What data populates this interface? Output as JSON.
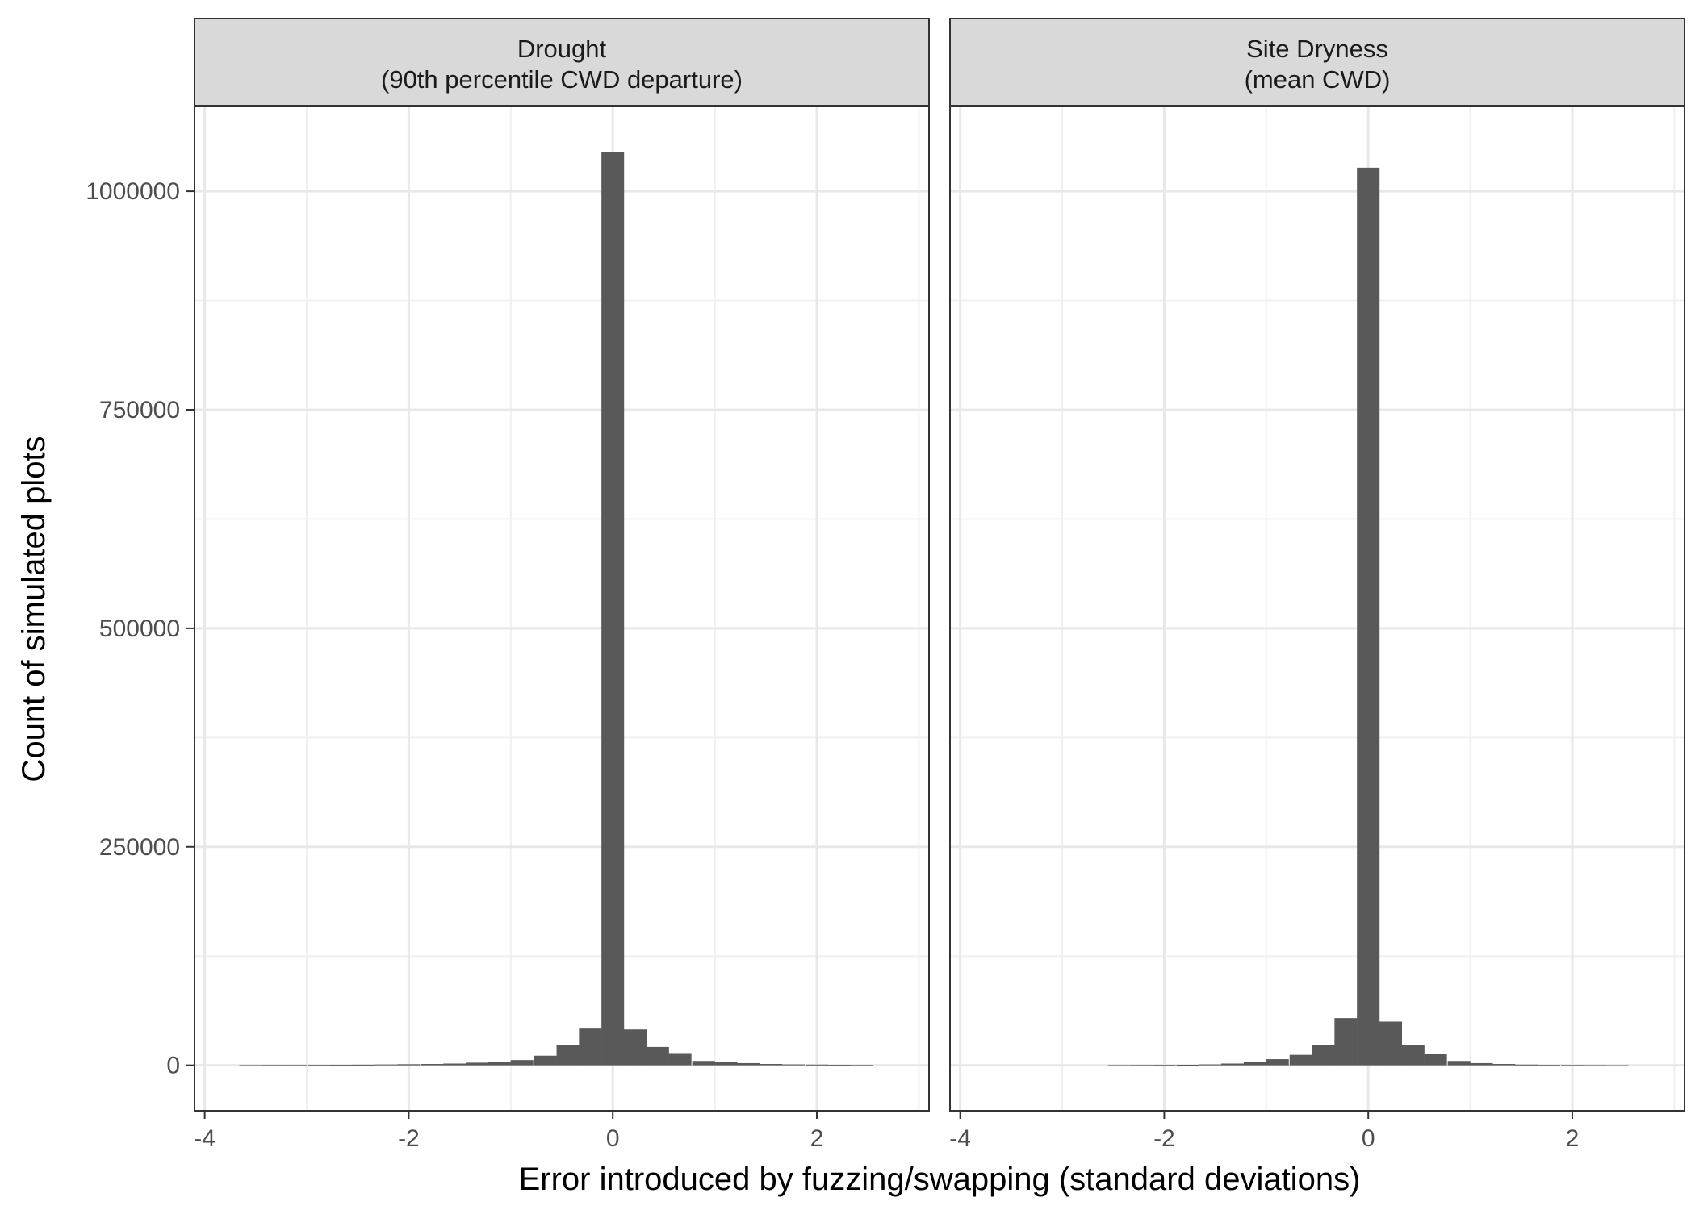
{
  "chart_data": {
    "type": "bar",
    "xlabel": "Error introduced by fuzzing/swapping (standard deviations)",
    "ylabel": "Count of simulated plots",
    "xlim": [
      -4.1,
      3.1
    ],
    "ylim": [
      -52000,
      1097000
    ],
    "x_ticks": [
      -4,
      -2,
      0,
      2
    ],
    "x_tick_labels": [
      "-4",
      "-2",
      "0",
      "2"
    ],
    "y_ticks": [
      0,
      250000,
      500000,
      750000,
      1000000
    ],
    "y_tick_labels": [
      "0",
      "250000",
      "500000",
      "750000",
      "1000000"
    ],
    "grid": true,
    "bin_width": 0.222,
    "bar_color": "#595959",
    "panels": [
      {
        "title_line1": "Drought",
        "title_line2": "(90th percentile CWD departure)",
        "bins": [
          {
            "x": -3.55,
            "y": 200
          },
          {
            "x": -3.33,
            "y": 300
          },
          {
            "x": -3.11,
            "y": 300
          },
          {
            "x": -2.88,
            "y": 400
          },
          {
            "x": -2.66,
            "y": 500
          },
          {
            "x": -2.44,
            "y": 700
          },
          {
            "x": -2.22,
            "y": 900
          },
          {
            "x": -2.0,
            "y": 1200
          },
          {
            "x": -1.77,
            "y": 1500
          },
          {
            "x": -1.55,
            "y": 2000
          },
          {
            "x": -1.33,
            "y": 3000
          },
          {
            "x": -1.11,
            "y": 4000
          },
          {
            "x": -0.89,
            "y": 6000
          },
          {
            "x": -0.66,
            "y": 11000
          },
          {
            "x": -0.44,
            "y": 23000
          },
          {
            "x": -0.22,
            "y": 42000
          },
          {
            "x": 0.0,
            "y": 1045000
          },
          {
            "x": 0.22,
            "y": 41000
          },
          {
            "x": 0.44,
            "y": 21000
          },
          {
            "x": 0.66,
            "y": 14000
          },
          {
            "x": 0.89,
            "y": 5000
          },
          {
            "x": 1.11,
            "y": 3500
          },
          {
            "x": 1.33,
            "y": 2500
          },
          {
            "x": 1.55,
            "y": 1500
          },
          {
            "x": 1.77,
            "y": 1000
          },
          {
            "x": 2.0,
            "y": 800
          },
          {
            "x": 2.22,
            "y": 500
          },
          {
            "x": 2.44,
            "y": 300
          }
        ]
      },
      {
        "title_line1": "Site Dryness",
        "title_line2": "(mean CWD)",
        "bins": [
          {
            "x": -2.44,
            "y": 200
          },
          {
            "x": -2.22,
            "y": 300
          },
          {
            "x": -2.0,
            "y": 400
          },
          {
            "x": -1.77,
            "y": 600
          },
          {
            "x": -1.55,
            "y": 1000
          },
          {
            "x": -1.33,
            "y": 2000
          },
          {
            "x": -1.11,
            "y": 4000
          },
          {
            "x": -0.89,
            "y": 7000
          },
          {
            "x": -0.66,
            "y": 12000
          },
          {
            "x": -0.44,
            "y": 23000
          },
          {
            "x": -0.22,
            "y": 54000
          },
          {
            "x": 0.0,
            "y": 1027000
          },
          {
            "x": 0.22,
            "y": 50000
          },
          {
            "x": 0.44,
            "y": 23000
          },
          {
            "x": 0.66,
            "y": 13000
          },
          {
            "x": 0.89,
            "y": 5000
          },
          {
            "x": 1.11,
            "y": 2500
          },
          {
            "x": 1.33,
            "y": 1500
          },
          {
            "x": 1.55,
            "y": 800
          },
          {
            "x": 1.77,
            "y": 400
          },
          {
            "x": 2.0,
            "y": 300
          },
          {
            "x": 2.22,
            "y": 200
          },
          {
            "x": 2.44,
            "y": 100
          }
        ]
      }
    ]
  }
}
